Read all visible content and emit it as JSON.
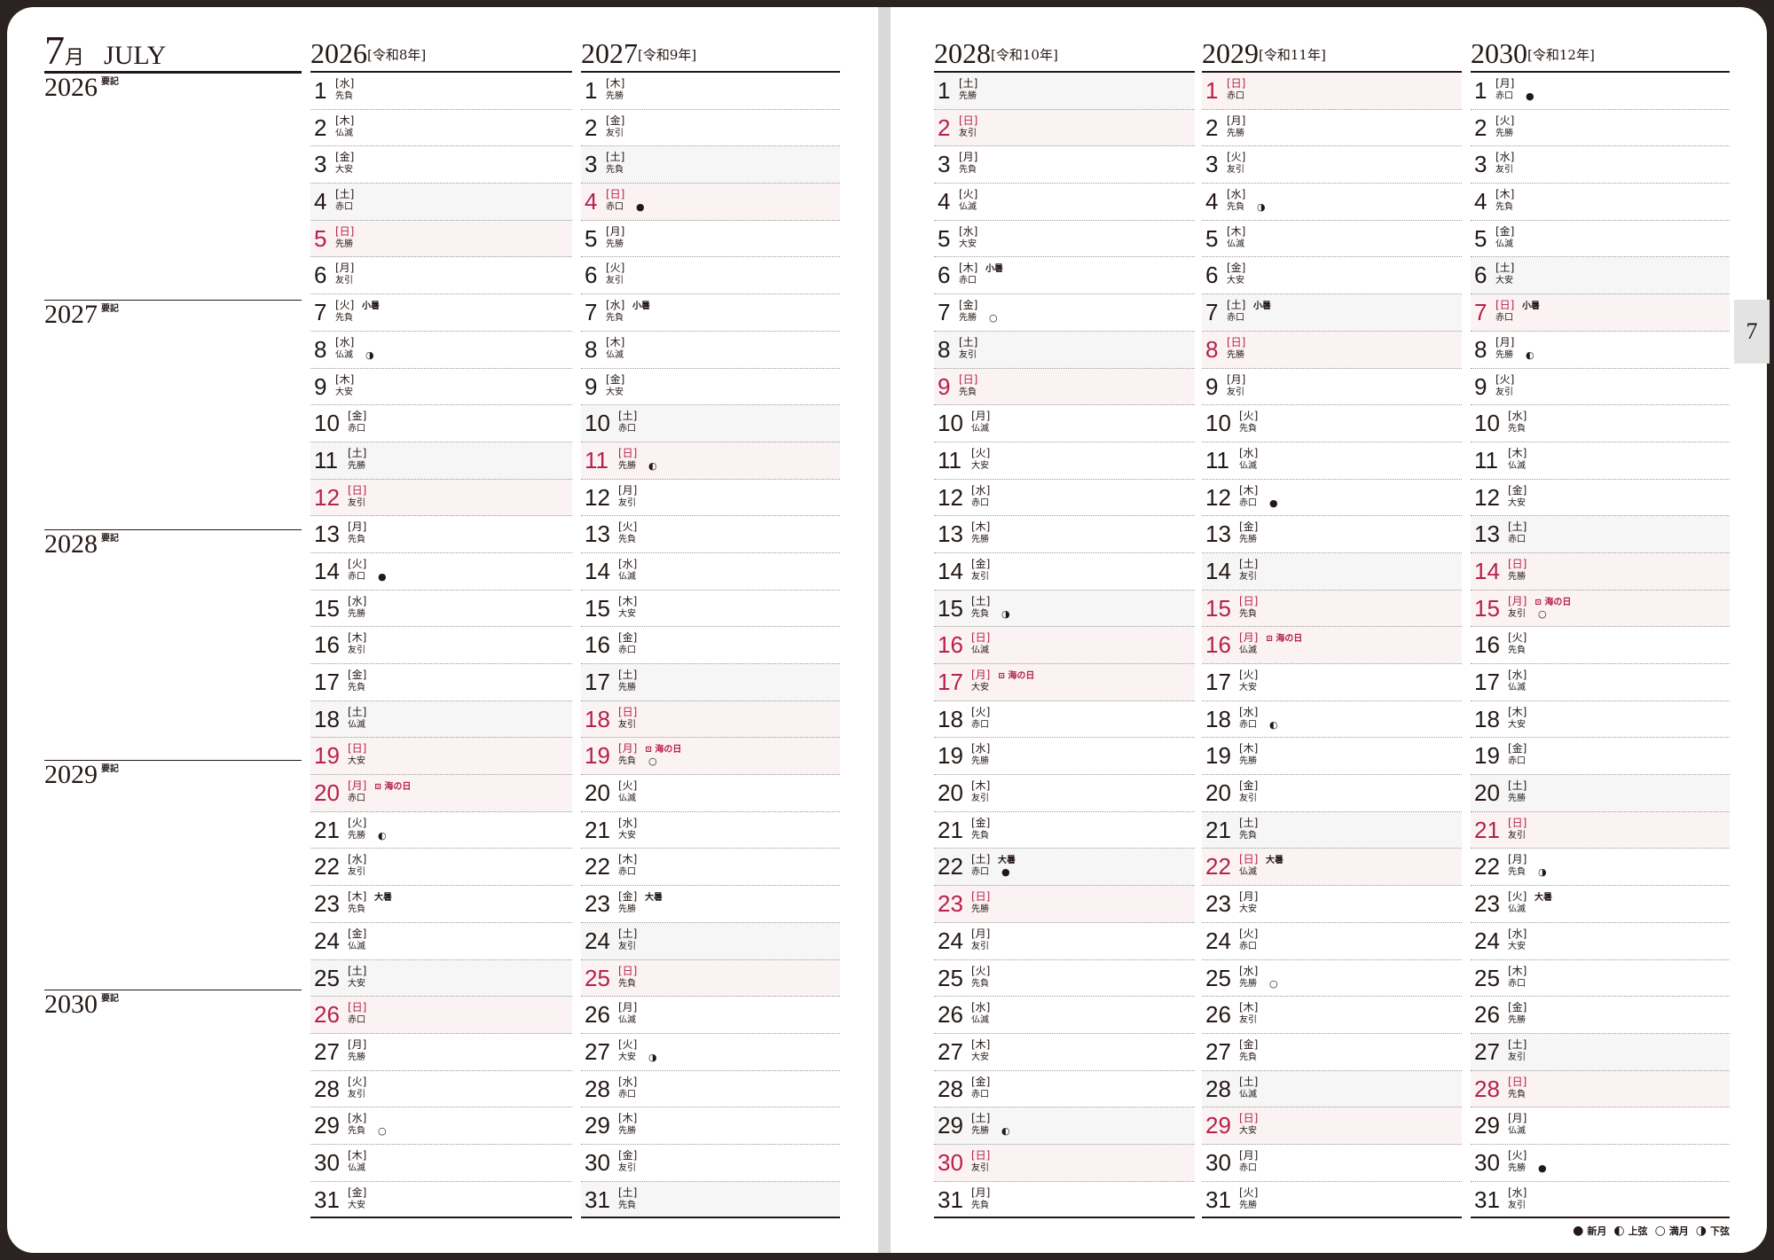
{
  "month": {
    "num": "7",
    "kanji": "月",
    "en": "JULY"
  },
  "notes": {
    "label": "要記",
    "years": [
      "2026",
      "2027",
      "2028",
      "2029",
      "2030"
    ]
  },
  "tab": "7",
  "holiday_name": "海の日",
  "holiday_icon": "flag-icon",
  "colors": {
    "red": "#b5204e",
    "sat_bg": "#f6f6f6",
    "red_bg": "#fbf3f3"
  },
  "legend": [
    {
      "sym": "●",
      "label": "新月"
    },
    {
      "sym": "◐",
      "label": "上弦"
    },
    {
      "sym": "○",
      "label": "満月"
    },
    {
      "sym": "◑",
      "label": "下弦"
    }
  ],
  "years": [
    {
      "year": "2026",
      "era": "[令和8年]",
      "first_wd": 3,
      "holiday": 20,
      "rokuyo": [
        "先負",
        "仏滅",
        "大安",
        "赤口",
        "先勝",
        "友引",
        "先負",
        "仏滅",
        "大安",
        "赤口",
        "先勝",
        "友引",
        "先負",
        "赤口",
        "先勝",
        "友引",
        "先負",
        "仏滅",
        "大安",
        "赤口",
        "先勝",
        "友引",
        "先負",
        "仏滅",
        "大安",
        "赤口",
        "先勝",
        "友引",
        "先負",
        "仏滅",
        "大安"
      ],
      "moons": {
        "8": "◑",
        "14": "●",
        "21": "◐",
        "29": "○"
      },
      "sekki": {
        "7": "小暑",
        "23": "大暑"
      }
    },
    {
      "year": "2027",
      "era": "[令和9年]",
      "first_wd": 4,
      "holiday": 19,
      "rokuyo": [
        "先勝",
        "友引",
        "先負",
        "赤口",
        "先勝",
        "友引",
        "先負",
        "仏滅",
        "大安",
        "赤口",
        "先勝",
        "友引",
        "先負",
        "仏滅",
        "大安",
        "赤口",
        "先勝",
        "友引",
        "先負",
        "仏滅",
        "大安",
        "赤口",
        "先勝",
        "友引",
        "先負",
        "仏滅",
        "大安",
        "赤口",
        "先勝",
        "友引",
        "先負"
      ],
      "moons": {
        "4": "●",
        "11": "◐",
        "19": "○",
        "27": "◑"
      },
      "sekki": {
        "7": "小暑",
        "23": "大暑"
      }
    },
    {
      "year": "2028",
      "era": "[令和10年]",
      "first_wd": 6,
      "holiday": 17,
      "rokuyo": [
        "先勝",
        "友引",
        "先負",
        "仏滅",
        "大安",
        "赤口",
        "先勝",
        "友引",
        "先負",
        "仏滅",
        "大安",
        "赤口",
        "先勝",
        "友引",
        "先負",
        "仏滅",
        "大安",
        "赤口",
        "先勝",
        "友引",
        "先負",
        "赤口",
        "先勝",
        "友引",
        "先負",
        "仏滅",
        "大安",
        "赤口",
        "先勝",
        "友引",
        "先負"
      ],
      "moons": {
        "7": "○",
        "15": "◑",
        "22": "●",
        "29": "◐"
      },
      "sekki": {
        "6": "小暑",
        "22": "大暑"
      }
    },
    {
      "year": "2029",
      "era": "[令和11年]",
      "first_wd": 0,
      "holiday": 16,
      "rokuyo": [
        "赤口",
        "先勝",
        "友引",
        "先負",
        "仏滅",
        "大安",
        "赤口",
        "先勝",
        "友引",
        "先負",
        "仏滅",
        "赤口",
        "先勝",
        "友引",
        "先負",
        "仏滅",
        "大安",
        "赤口",
        "先勝",
        "友引",
        "先負",
        "仏滅",
        "大安",
        "赤口",
        "先勝",
        "友引",
        "先負",
        "仏滅",
        "大安",
        "赤口",
        "先勝"
      ],
      "moons": {
        "4": "◑",
        "12": "●",
        "18": "◐",
        "25": "○"
      },
      "sekki": {
        "7": "小暑",
        "22": "大暑"
      }
    },
    {
      "year": "2030",
      "era": "[令和12年]",
      "first_wd": 1,
      "holiday": 15,
      "rokuyo": [
        "赤口",
        "先勝",
        "友引",
        "先負",
        "仏滅",
        "大安",
        "赤口",
        "先勝",
        "友引",
        "先負",
        "仏滅",
        "大安",
        "赤口",
        "先勝",
        "友引",
        "先負",
        "仏滅",
        "大安",
        "赤口",
        "先勝",
        "友引",
        "先負",
        "仏滅",
        "大安",
        "赤口",
        "先勝",
        "友引",
        "先負",
        "仏滅",
        "先勝",
        "友引"
      ],
      "moons": {
        "1": "●",
        "8": "◐",
        "15": "○",
        "22": "◑",
        "30": "●"
      },
      "sekki": {
        "7": "小暑",
        "23": "大暑"
      }
    }
  ],
  "weekdays": [
    "日",
    "月",
    "火",
    "水",
    "木",
    "金",
    "土"
  ]
}
